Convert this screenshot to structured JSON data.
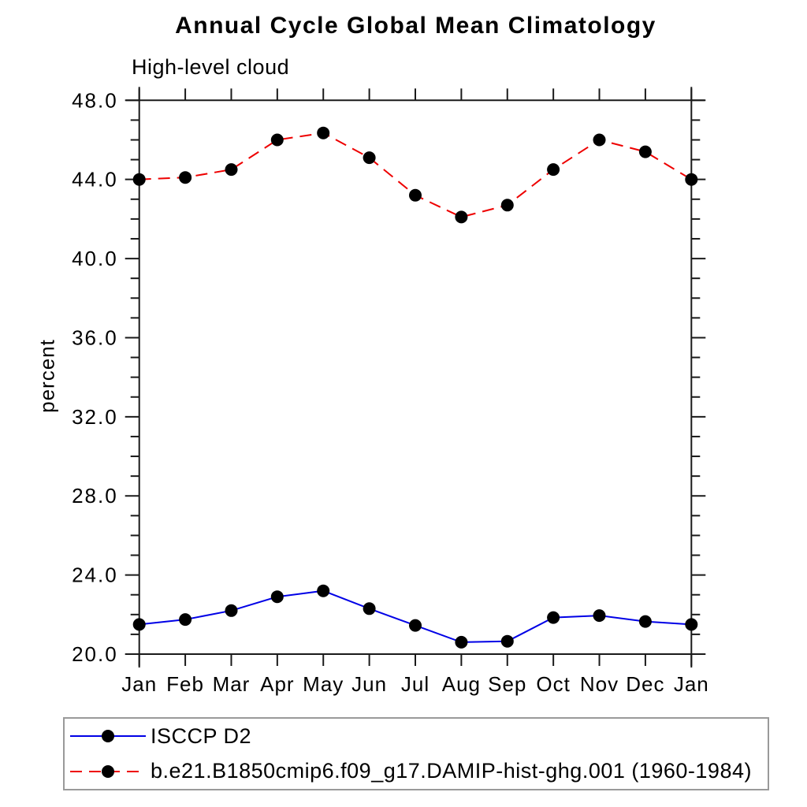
{
  "chart": {
    "title": "Annual Cycle Global Mean Climatology",
    "subtitle": "High-level cloud",
    "ylabel": "percent"
  },
  "legend": {
    "items": [
      {
        "label": "ISCCP D2",
        "color": "#0000e6",
        "line_style": "solid",
        "marker": "filled-circle",
        "marker_color": "#000000"
      },
      {
        "label": "b.e21.B1850cmip6.f09_g17.DAMIP-hist-ghg.001 (1960-1984)",
        "color": "#ee0000",
        "line_style": "dashed",
        "marker": "filled-circle",
        "marker_color": "#000000"
      }
    ]
  },
  "chart_data": {
    "type": "line",
    "title": "Annual Cycle Global Mean Climatology",
    "subtitle": "High-level cloud",
    "xlabel": "",
    "ylabel": "percent",
    "x_tick_labels": [
      "Jan",
      "Feb",
      "Mar",
      "Apr",
      "May",
      "Jun",
      "Jul",
      "Aug",
      "Sep",
      "Oct",
      "Nov",
      "Dec",
      "Jan"
    ],
    "ylim": [
      20.0,
      48.0
    ],
    "y_major_ticks": [
      20,
      24,
      28,
      32,
      36,
      40,
      44,
      48
    ],
    "y_major_tick_labels": [
      "20.0",
      "24.0",
      "28.0",
      "32.0",
      "36.0",
      "40.0",
      "44.0",
      "48.0"
    ],
    "y_minor_tick_interval": 1.0,
    "grid": false,
    "legend_position": "bottom-left-box",
    "axis_color": "#1a1a1a",
    "series": [
      {
        "name": "ISCCP D2",
        "color": "#0000e6",
        "line_style": "solid",
        "marker": "circle",
        "marker_color": "#000000",
        "values": [
          21.5,
          21.75,
          22.2,
          22.9,
          23.2,
          22.3,
          21.45,
          20.6,
          20.65,
          21.85,
          21.95,
          21.65,
          21.5
        ]
      },
      {
        "name": "b.e21.B1850cmip6.f09_g17.DAMIP-hist-ghg.001 (1960-1984)",
        "color": "#ee0000",
        "line_style": "dashed",
        "marker": "circle",
        "marker_color": "#000000",
        "values": [
          44.0,
          44.1,
          44.5,
          46.0,
          46.35,
          45.1,
          43.2,
          42.1,
          42.7,
          44.5,
          46.0,
          45.4,
          44.0
        ]
      }
    ]
  }
}
